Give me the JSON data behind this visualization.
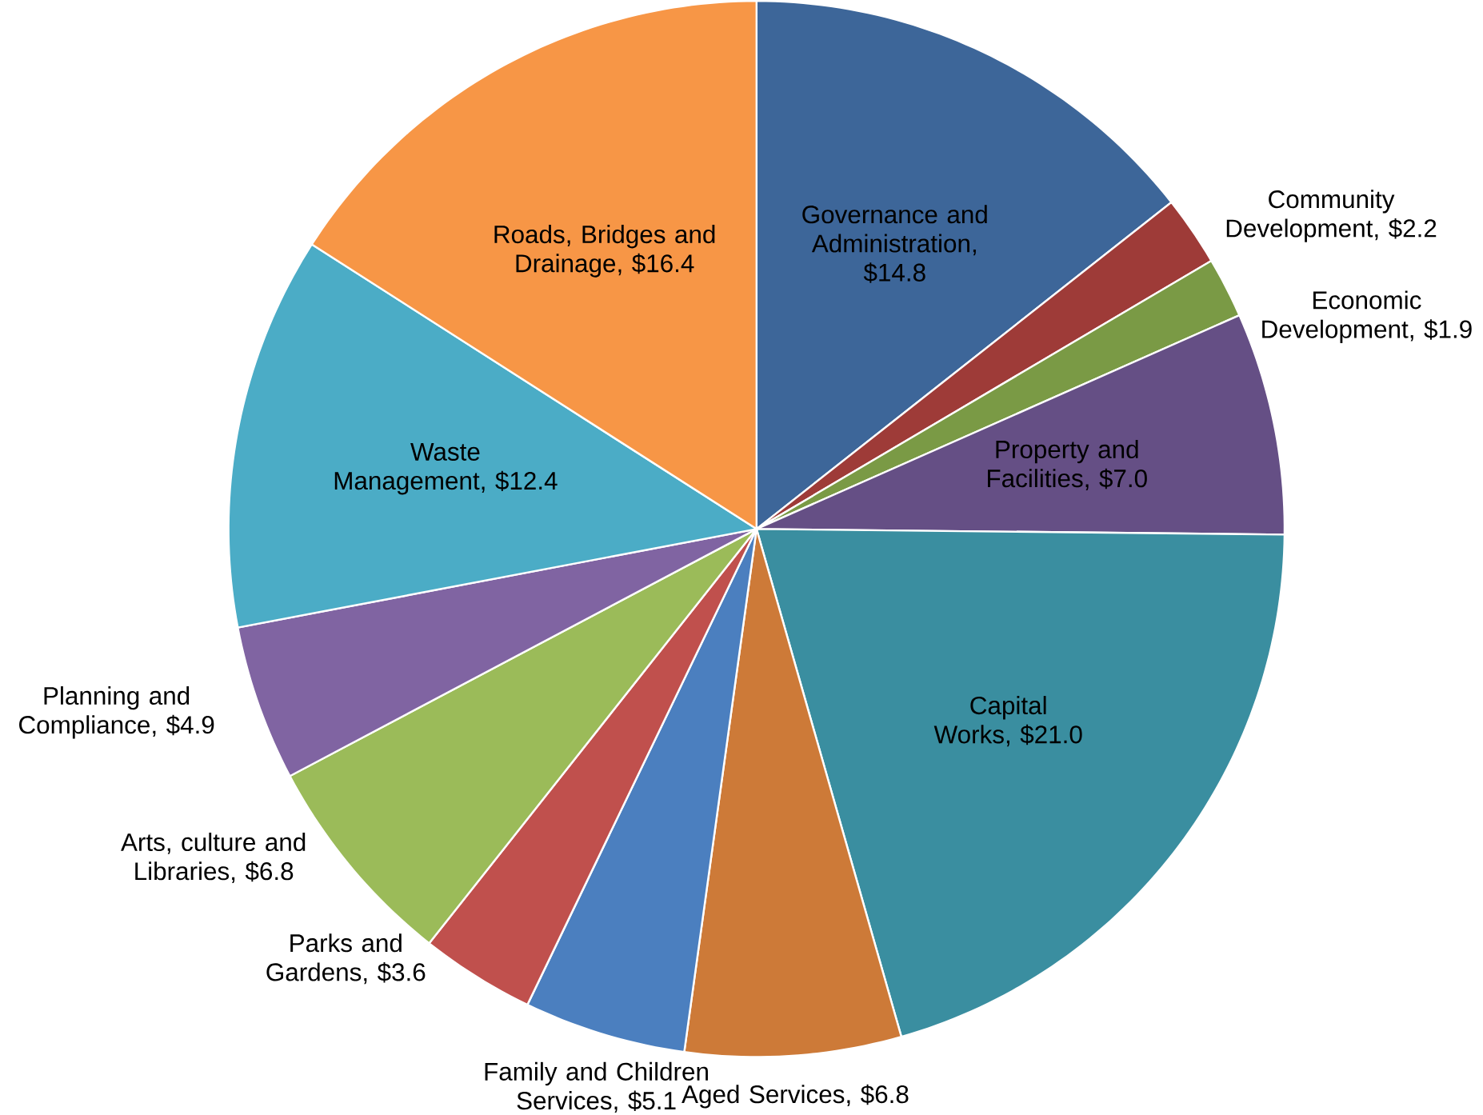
{
  "chart_data": {
    "type": "pie",
    "categories": [
      "Governance and Administration",
      "Community Development",
      "Economic Development",
      "Property and Facilities",
      "Capital Works",
      "Aged Services",
      "Family and Children Services",
      "Parks and Gardens",
      "Arts, culture and Libraries",
      "Planning and Compliance",
      "Waste Management",
      "Roads, Bridges and Drainage"
    ],
    "values": [
      14.8,
      2.2,
      1.9,
      7.0,
      21.0,
      6.8,
      5.1,
      3.6,
      6.8,
      4.9,
      12.4,
      16.4
    ],
    "value_labels": [
      ", $14.8",
      ", $2.2",
      ", $1.9",
      ", $7.0",
      ", $21.0",
      ", $6.8",
      ", $5.1",
      ", $3.6",
      ", $6.8",
      ", $4.9",
      ", $12.4",
      ", $16.4"
    ],
    "colors": [
      "#3d6699",
      "#9e3b38",
      "#7a9a45",
      "#654f85",
      "#3a8ea0",
      "#cd7a38",
      "#4b7fbf",
      "#c0504d",
      "#9bbb59",
      "#8064a2",
      "#4bacc6",
      "#f79646"
    ]
  }
}
